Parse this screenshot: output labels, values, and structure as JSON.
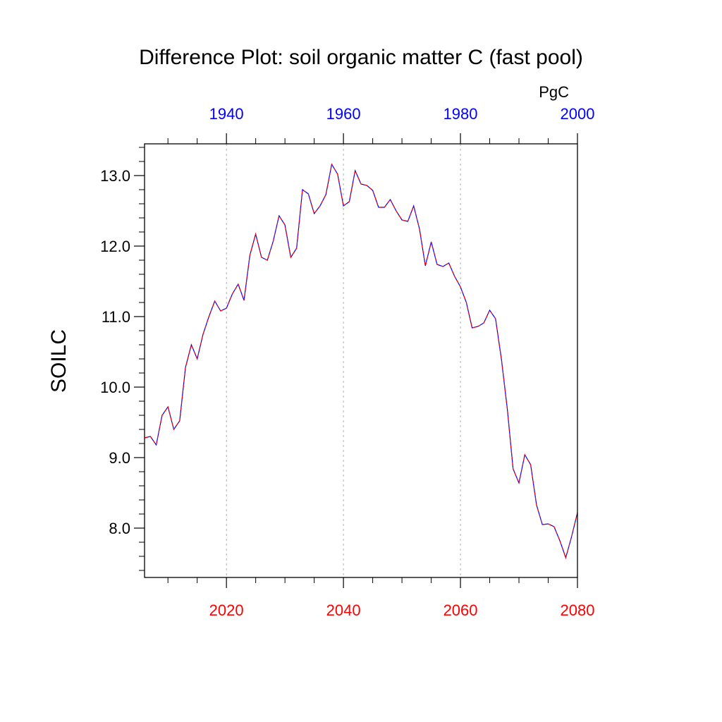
{
  "chart_data": {
    "type": "line",
    "title": "Difference Plot: soil organic matter C (fast pool)",
    "ylabel": "SOILC",
    "units": "PgC",
    "ylim": [
      7.3,
      13.45
    ],
    "yticks": [
      "8.0",
      "9.0",
      "10.0",
      "11.0",
      "12.0",
      "13.0"
    ],
    "bottom_axis": {
      "color": "#ff0000",
      "range": [
        2006,
        2080
      ],
      "ticks": [
        "2020",
        "2040",
        "2060",
        "2080"
      ],
      "gridlines": [
        2020,
        2040,
        2060
      ]
    },
    "top_axis": {
      "color": "#0000ff",
      "ticks": [
        "1940",
        "1960",
        "1980",
        "2000"
      ],
      "tick_years": [
        1940,
        1960,
        1980,
        2000
      ],
      "offset_to_bottom": 80
    },
    "series": [
      {
        "line_colors": [
          "#0000ff",
          "#ff0000"
        ],
        "x": [
          2006,
          2007,
          2008,
          2009,
          2010,
          2011,
          2012,
          2013,
          2014,
          2015,
          2016,
          2017,
          2018,
          2019,
          2020,
          2021,
          2022,
          2023,
          2024,
          2025,
          2026,
          2027,
          2028,
          2029,
          2030,
          2031,
          2032,
          2033,
          2034,
          2035,
          2036,
          2037,
          2038,
          2039,
          2040,
          2041,
          2042,
          2043,
          2044,
          2045,
          2046,
          2047,
          2048,
          2049,
          2050,
          2051,
          2052,
          2053,
          2054,
          2055,
          2056,
          2057,
          2058,
          2059,
          2060,
          2061,
          2062,
          2063,
          2064,
          2065,
          2066,
          2067,
          2068,
          2069,
          2070,
          2071,
          2072,
          2073,
          2074,
          2075,
          2076,
          2077,
          2078,
          2079,
          2080
        ],
        "y": [
          9.28,
          9.3,
          9.18,
          9.6,
          9.72,
          9.4,
          9.52,
          10.28,
          10.6,
          10.4,
          10.75,
          11.0,
          11.22,
          11.08,
          11.12,
          11.32,
          11.46,
          11.23,
          11.87,
          12.17,
          11.84,
          11.8,
          12.07,
          12.43,
          12.3,
          11.84,
          11.97,
          12.8,
          12.74,
          12.46,
          12.57,
          12.73,
          13.16,
          13.02,
          12.57,
          12.63,
          13.07,
          12.88,
          12.86,
          12.79,
          12.55,
          12.55,
          12.66,
          12.5,
          12.37,
          12.35,
          12.57,
          12.24,
          11.72,
          12.06,
          11.74,
          11.71,
          11.76,
          11.57,
          11.42,
          11.2,
          10.84,
          10.86,
          10.91,
          11.09,
          10.97,
          10.4,
          9.7,
          8.84,
          8.64,
          9.04,
          8.9,
          8.33,
          8.05,
          8.06,
          8.02,
          7.82,
          7.58,
          7.88,
          8.22
        ]
      }
    ]
  }
}
